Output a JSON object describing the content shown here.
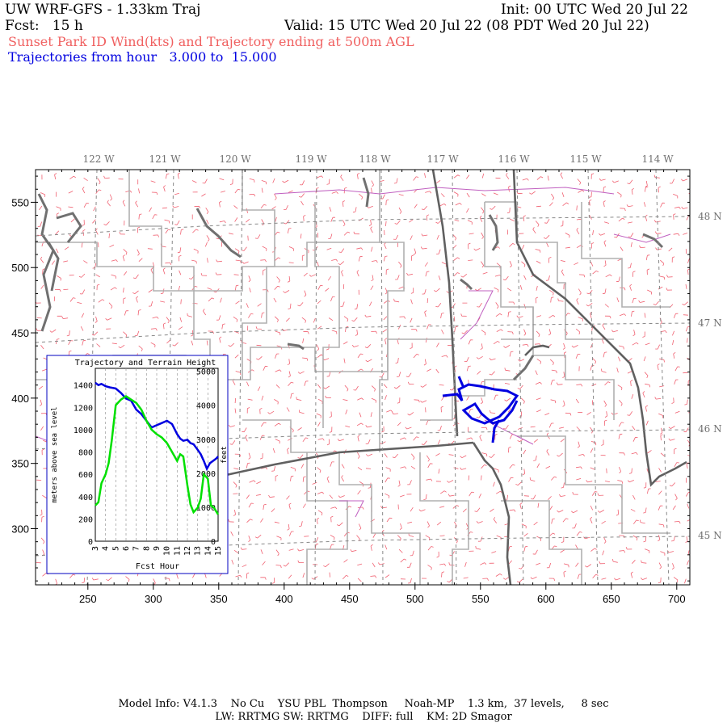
{
  "header": {
    "model_title": "UW WRF-GFS - 1.33km Traj",
    "init_time": "Init: 00 UTC Wed 20 Jul 22",
    "forecast": "Fcst:   15 h",
    "valid_time": "Valid: 15 UTC Wed 20 Jul 22 (08 PDT Wed 20 Jul 22)",
    "field_description": "Sunset Park ID Wind(kts) and Trajectory ending at 500m AGL",
    "trajectory_range": "Trajectories from hour   3.000 to  15.000"
  },
  "map": {
    "longitude_labels": [
      "122 W",
      "121 W",
      "120 W",
      "119 W",
      "118 W",
      "117 W",
      "116 W",
      "115 W",
      "114 W"
    ],
    "latitude_labels": [
      "48 N",
      "47 N",
      "46 N",
      "45 N"
    ],
    "x_ticks": [
      250,
      300,
      350,
      400,
      450,
      500,
      550,
      600,
      650,
      700
    ],
    "y_ticks": [
      300,
      350,
      400,
      450,
      500,
      550
    ],
    "colors": {
      "wind_barbs": "#f06070",
      "trajectory": "#0000e0",
      "county_lines": "#b0b0b0",
      "state_lines": "#606060",
      "roads": "#c060c0"
    }
  },
  "inset": {
    "title": "Trajectory and Terrain Height",
    "xlabel": "Fcst Hour",
    "ylabel_left": "meters above sea level",
    "ylabel_right": "feet",
    "left_ticks": [
      0,
      200,
      400,
      600,
      800,
      1000,
      1200,
      1400
    ],
    "right_ticks": [
      0,
      1000,
      2000,
      3000,
      4000,
      5000
    ],
    "hour_ticks": [
      3,
      4,
      5,
      6,
      7,
      8,
      9,
      10,
      11,
      12,
      13,
      14,
      15
    ],
    "colors": {
      "trajectory_height": "#0000e0",
      "terrain_height": "#00e000"
    }
  },
  "chart_data": {
    "type": "line",
    "title": "Trajectory and Terrain Height",
    "xlabel": "Fcst Hour",
    "ylabel": "meters above sea level",
    "xlim": [
      3,
      15
    ],
    "ylim": [
      0,
      1550
    ],
    "series": [
      {
        "x": [
          3.0,
          3.3,
          3.6,
          4.0,
          4.4,
          5.0,
          5.5,
          6.0,
          6.5,
          7.0,
          7.5,
          8.0,
          8.5,
          9.0,
          9.5,
          10.0,
          10.5,
          11.0,
          11.3,
          11.6,
          12.0,
          12.3,
          12.6,
          13.0,
          13.3,
          13.6,
          13.9,
          14.2,
          14.5,
          14.8,
          15.0
        ],
        "y": [
          1420,
          1400,
          1410,
          1390,
          1380,
          1370,
          1330,
          1280,
          1260,
          1180,
          1140,
          1080,
          1020,
          1040,
          1060,
          1080,
          1050,
          960,
          920,
          900,
          910,
          880,
          870,
          820,
          780,
          720,
          650,
          700,
          720,
          740,
          760
        ]
      },
      {
        "x": [
          3.0,
          3.3,
          3.6,
          4.0,
          4.3,
          4.6,
          5.0,
          5.5,
          6.0,
          6.5,
          7.0,
          7.5,
          8.0,
          8.5,
          9.0,
          9.5,
          10.0,
          10.5,
          11.0,
          11.3,
          11.6,
          12.0,
          12.3,
          12.6,
          13.0,
          13.3,
          13.6,
          14.0,
          14.3,
          14.6,
          15.0
        ],
        "y": [
          320,
          350,
          520,
          600,
          700,
          900,
          1220,
          1270,
          1300,
          1270,
          1240,
          1180,
          1080,
          1000,
          960,
          930,
          880,
          800,
          720,
          780,
          760,
          500,
          330,
          260,
          300,
          380,
          600,
          560,
          320,
          300,
          240
        ]
      }
    ]
  },
  "footer": {
    "line1": "Model Info: V4.1.3    No Cu    YSU PBL  Thompson     Noah-MP    1.3 km,  37 levels,     8 sec",
    "line2": "LW: RRTMG SW: RRTMG    DIFF: full    KM: 2D Smagor"
  }
}
